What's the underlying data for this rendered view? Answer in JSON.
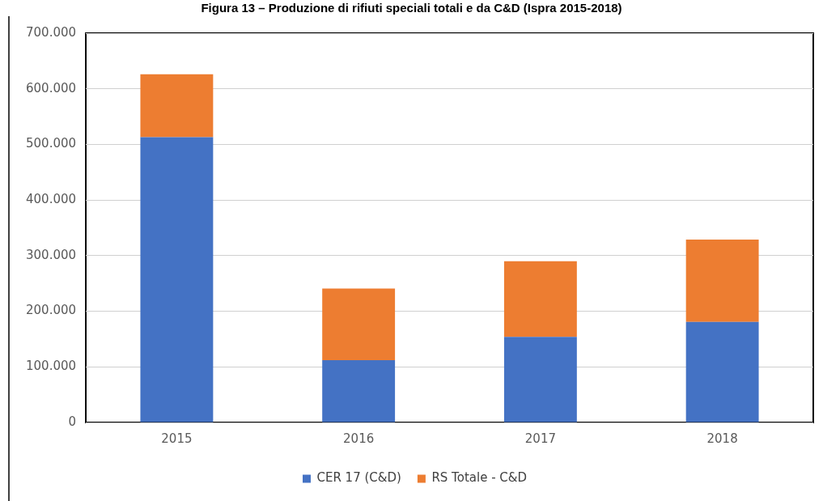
{
  "chart_data": {
    "type": "bar",
    "title": "Figura 13 – Produzione di rifiuti speciali totali e da C&D (Ispra 2015-2018)",
    "categories": [
      "2015",
      "2016",
      "2017",
      "2018"
    ],
    "stacked": true,
    "series": [
      {
        "name": "CER 17 (C&D)",
        "color": "#4472c4",
        "values": [
          513000,
          112000,
          154000,
          181000
        ]
      },
      {
        "name": "RS Totale - C&D",
        "color": "#ed7d31",
        "values": [
          113000,
          129000,
          136000,
          148000
        ]
      }
    ],
    "ylim": [
      0,
      700000
    ],
    "yticks": [
      0,
      {
        "value": 100000,
        "label": "100.000"
      },
      {
        "value": 200000,
        "label": "200.000"
      },
      {
        "value": 300000,
        "label": "300.000"
      },
      {
        "value": 400000,
        "label": "400.000"
      },
      {
        "value": 500000,
        "label": "500.000"
      },
      {
        "value": 600000,
        "label": "600.000"
      },
      {
        "value": 700000,
        "label": "700.000"
      }
    ],
    "grid": "y",
    "legend": "bottom"
  }
}
